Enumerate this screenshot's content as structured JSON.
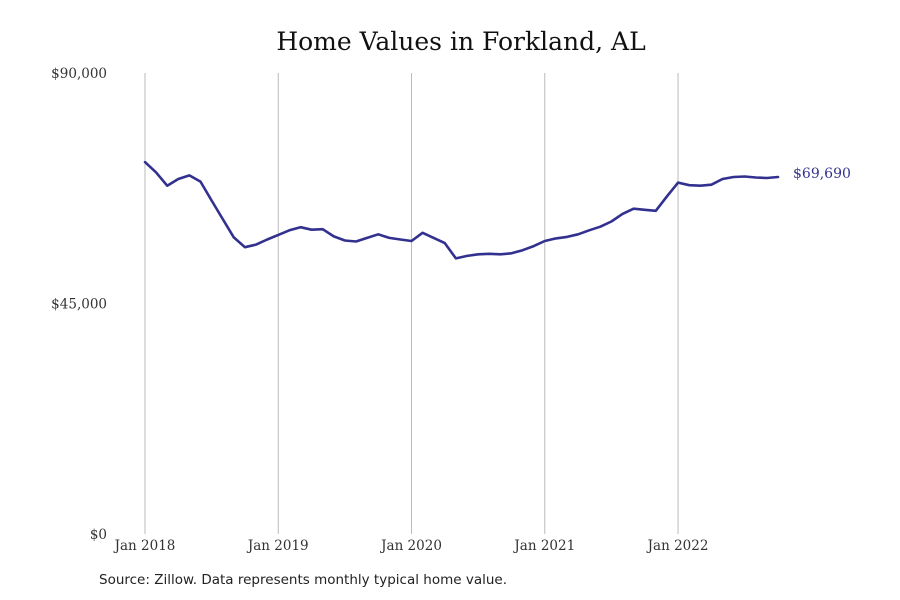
{
  "colors": {
    "line": "#33318f",
    "grid": "#bbbbbb",
    "background": "#ffffff"
  },
  "chart_data": {
    "type": "line",
    "title": "Home Values in Forkland, AL",
    "xlabel": "",
    "ylabel": "",
    "ylim": [
      0,
      90000
    ],
    "xlim": [
      "2018-01",
      "2022-10"
    ],
    "y_ticks": [
      {
        "value": 0,
        "label": "$0"
      },
      {
        "value": 45000,
        "label": "$45,000"
      },
      {
        "value": 90000,
        "label": "$90,000"
      }
    ],
    "x_ticks": [
      {
        "value": "2018-01",
        "label": "Jan 2018"
      },
      {
        "value": "2019-01",
        "label": "Jan 2019"
      },
      {
        "value": "2020-01",
        "label": "Jan 2020"
      },
      {
        "value": "2021-01",
        "label": "Jan 2021"
      },
      {
        "value": "2022-01",
        "label": "Jan 2022"
      }
    ],
    "grid": "vertical lines at x ticks",
    "legend": "none",
    "end_label": "$69,690",
    "series": [
      {
        "x": [
          "2018-01",
          "2018-02",
          "2018-03",
          "2018-04",
          "2018-05",
          "2018-06",
          "2018-07",
          "2018-08",
          "2018-09",
          "2018-10",
          "2018-11",
          "2018-12",
          "2019-01",
          "2019-02",
          "2019-03",
          "2019-04",
          "2019-05",
          "2019-06",
          "2019-07",
          "2019-08",
          "2019-09",
          "2019-10",
          "2019-11",
          "2019-12",
          "2020-01",
          "2020-02",
          "2020-03",
          "2020-04",
          "2020-05",
          "2020-06",
          "2020-07",
          "2020-08",
          "2020-09",
          "2020-10",
          "2020-11",
          "2020-12",
          "2021-01",
          "2021-02",
          "2021-03",
          "2021-04",
          "2021-05",
          "2021-06",
          "2021-07",
          "2021-08",
          "2021-09",
          "2021-10",
          "2021-11",
          "2021-12",
          "2022-01",
          "2022-02",
          "2022-03",
          "2022-04",
          "2022-05",
          "2022-06",
          "2022-07",
          "2022-08",
          "2022-09",
          "2022-10"
        ],
        "values": [
          72600,
          70600,
          68000,
          69300,
          70000,
          68800,
          65100,
          61500,
          57900,
          56000,
          56500,
          57500,
          58400,
          59300,
          59900,
          59400,
          59500,
          58100,
          57300,
          57100,
          57800,
          58500,
          57800,
          57500,
          57200,
          58800,
          57800,
          56800,
          53800,
          54300,
          54600,
          54700,
          54600,
          54800,
          55400,
          56200,
          57200,
          57700,
          58000,
          58500,
          59300,
          60000,
          61000,
          62500,
          63500,
          63300,
          63100,
          65900,
          68600,
          68100,
          68000,
          68200,
          69300,
          69700,
          69800,
          69600,
          69500,
          69690
        ]
      }
    ]
  },
  "footer": {
    "source": "Source: Zillow. Data represents monthly typical home value."
  }
}
